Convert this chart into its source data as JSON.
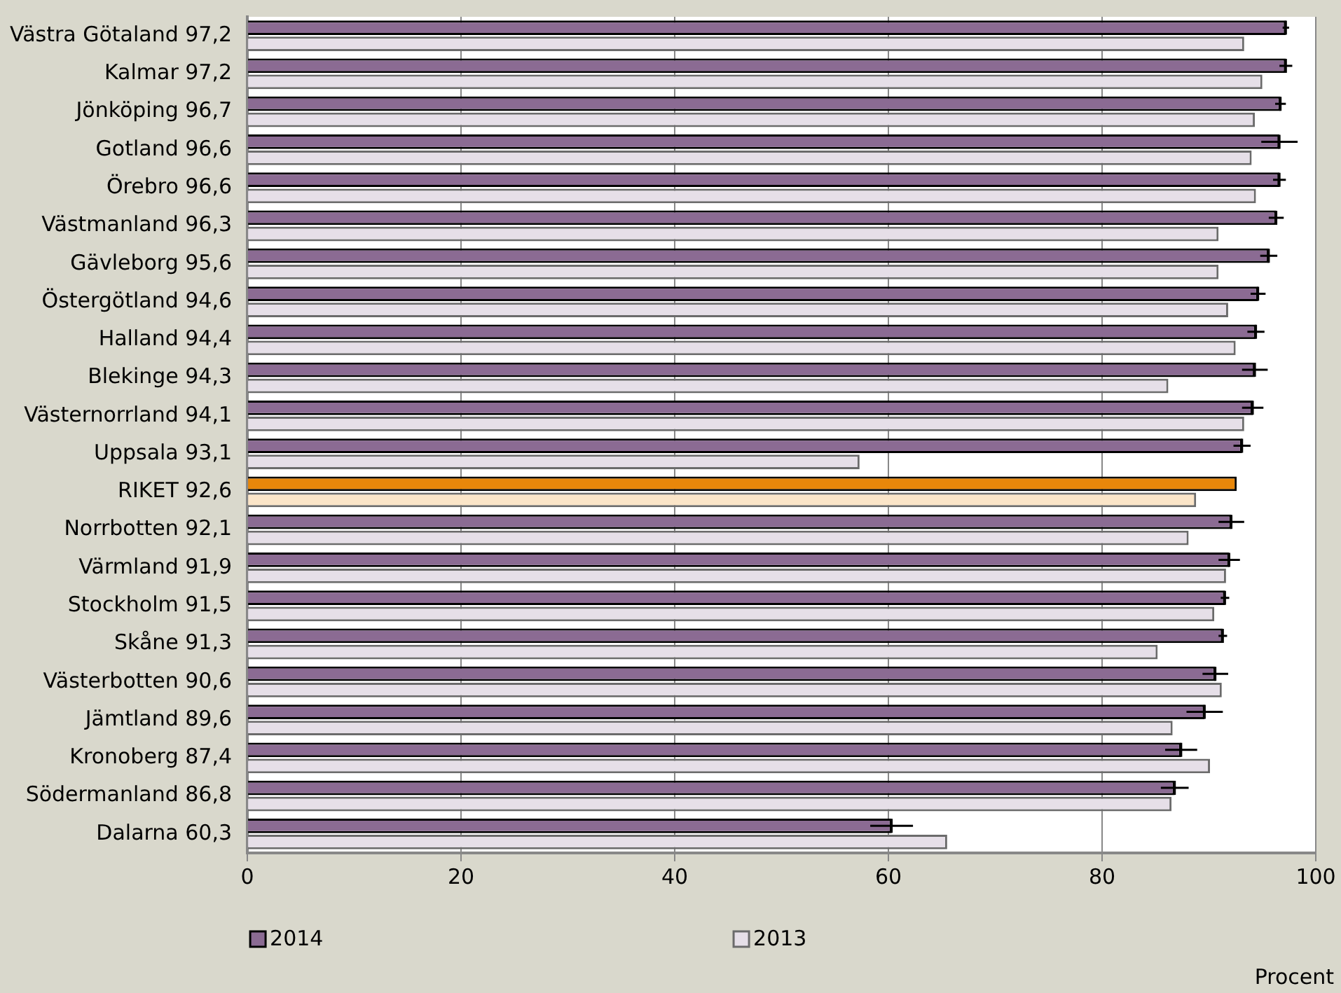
{
  "chart_data": {
    "type": "bar",
    "orientation": "horizontal",
    "annotations": [
      "Procent"
    ],
    "categories": [
      "Västra Götaland 97,2",
      "Kalmar 97,2",
      "Jönköping 96,7",
      "Gotland 96,6",
      "Örebro 96,6",
      "Västmanland 96,3",
      "Gävleborg 95,6",
      "Östergötland 94,6",
      "Halland 94,4",
      "Blekinge 94,3",
      "Västernorrland 94,1",
      "Uppsala 93,1",
      "RIKET 92,6",
      "Norrbotten 92,1",
      "Värmland 91,9",
      "Stockholm 91,5",
      "Skåne 91,3",
      "Västerbotten 90,6",
      "Jämtland 89,6",
      "Kronoberg 87,4",
      "Södermanland 86,8",
      "Dalarna 60,3"
    ],
    "series": [
      {
        "name": "2014",
        "color": "#8b6b93",
        "colors": [
          "#8b6b93",
          "#8b6b93",
          "#8b6b93",
          "#8b6b93",
          "#8b6b93",
          "#8b6b93",
          "#8b6b93",
          "#8b6b93",
          "#8b6b93",
          "#8b6b93",
          "#8b6b93",
          "#8b6b93",
          "#e8870a",
          "#8b6b93",
          "#8b6b93",
          "#8b6b93",
          "#8b6b93",
          "#8b6b93",
          "#8b6b93",
          "#8b6b93",
          "#8b6b93",
          "#8b6b93"
        ],
        "values": [
          97.2,
          97.2,
          96.7,
          96.6,
          96.6,
          96.3,
          95.6,
          94.6,
          94.4,
          94.3,
          94.1,
          93.1,
          92.6,
          92.1,
          91.9,
          91.5,
          91.3,
          90.6,
          89.6,
          87.4,
          86.8,
          60.3
        ],
        "errors": [
          0.3,
          0.6,
          0.5,
          1.7,
          0.6,
          0.7,
          0.8,
          0.7,
          0.8,
          1.2,
          1.0,
          0.8,
          null,
          1.2,
          1.0,
          0.4,
          0.4,
          1.2,
          1.7,
          1.5,
          1.3,
          2.0
        ]
      },
      {
        "name": "2013",
        "color": "#e6dfe8",
        "colors": [
          "#e6dfe8",
          "#e6dfe8",
          "#e6dfe8",
          "#e6dfe8",
          "#e6dfe8",
          "#e6dfe8",
          "#e6dfe8",
          "#e6dfe8",
          "#e6dfe8",
          "#e6dfe8",
          "#e6dfe8",
          "#e6dfe8",
          "#fbe5c8",
          "#e6dfe8",
          "#e6dfe8",
          "#e6dfe8",
          "#e6dfe8",
          "#e6dfe8",
          "#e6dfe8",
          "#e6dfe8",
          "#e6dfe8",
          "#e6dfe8"
        ],
        "values": [
          93.3,
          95.0,
          94.3,
          94.0,
          94.4,
          90.9,
          90.9,
          91.8,
          92.5,
          86.2,
          93.3,
          57.3,
          88.8,
          88.1,
          91.6,
          90.5,
          85.2,
          91.2,
          86.6,
          90.1,
          86.5,
          65.5
        ]
      }
    ],
    "xlim": [
      0,
      100
    ],
    "xticks": [
      0,
      20,
      40,
      60,
      80,
      100
    ],
    "grid": "x",
    "legend": "bottom"
  }
}
